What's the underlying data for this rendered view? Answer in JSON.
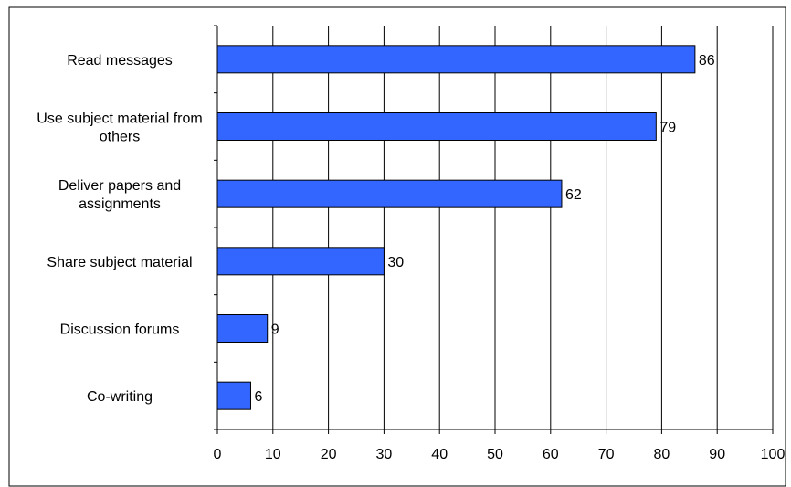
{
  "chart_data": {
    "type": "bar",
    "orientation": "horizontal",
    "categories": [
      [
        "Read messages"
      ],
      [
        "Use subject material from",
        "others"
      ],
      [
        "Deliver papers and",
        "assignments"
      ],
      [
        "Share subject material"
      ],
      [
        "Discussion forums"
      ],
      [
        "Co-writing"
      ]
    ],
    "values": [
      86,
      79,
      62,
      30,
      9,
      6
    ],
    "data_labels": [
      "86",
      "79",
      "62",
      "30",
      "9",
      "6"
    ],
    "xlim": [
      0,
      100
    ],
    "x_ticks": [
      0,
      10,
      20,
      30,
      40,
      50,
      60,
      70,
      80,
      90,
      100
    ],
    "x_tick_labels": [
      "0",
      "10",
      "20",
      "30",
      "40",
      "50",
      "60",
      "70",
      "80",
      "90",
      "100"
    ],
    "grid": "vertical",
    "legend": "none",
    "title": "",
    "xlabel": "",
    "ylabel": "",
    "colors": {
      "bar_fill": "#3366FF",
      "bar_stroke": "#000000",
      "grid": "#000000",
      "axis": "#000000",
      "text": "#000000",
      "frame": "#000000"
    }
  }
}
